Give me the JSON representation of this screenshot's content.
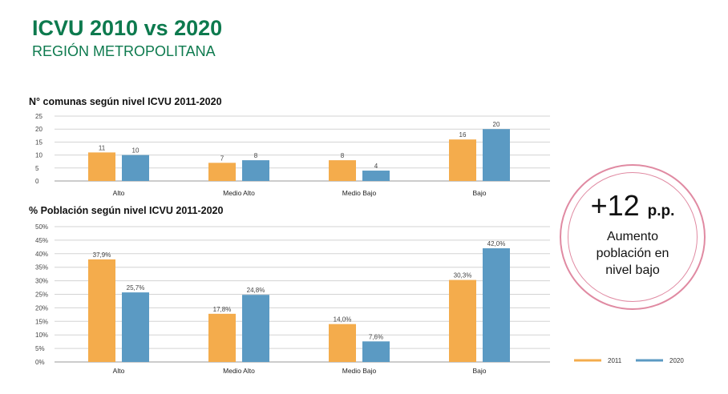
{
  "header": {
    "title": "ICVU 2010 vs 2020",
    "subtitle": "REGIÓN METROPOLITANA"
  },
  "colors": {
    "title": "#0d7a4e",
    "series_2011": "#f4ac4c",
    "series_2020": "#5b9ac3",
    "callout_ring": "#e08aa2"
  },
  "callout": {
    "value": "+12",
    "unit": "p.p.",
    "description": "Aumento población en nivel bajo"
  },
  "legend": {
    "placement": "bottom-right",
    "items": [
      "2011",
      "2020"
    ]
  },
  "chart_data": [
    {
      "type": "bar",
      "title": "N° comunas según nivel ICVU 2011-2020",
      "categories": [
        "Alto",
        "Medio Alto",
        "Medio Bajo",
        "Bajo"
      ],
      "series": [
        {
          "name": "2011",
          "values": [
            11,
            7,
            8,
            16
          ],
          "labels": [
            "11",
            "7",
            "8",
            "16"
          ]
        },
        {
          "name": "2020",
          "values": [
            10,
            8,
            4,
            20
          ],
          "labels": [
            "10",
            "8",
            "4",
            "20"
          ]
        }
      ],
      "ylim": [
        0,
        25
      ],
      "yticks": [
        0,
        5,
        10,
        15,
        20,
        25
      ],
      "ytick_labels": [
        "0",
        "5",
        "10",
        "15",
        "20",
        "25"
      ],
      "grid": true
    },
    {
      "type": "bar",
      "title": "% Población según nivel ICVU 2011-2020",
      "categories": [
        "Alto",
        "Medio Alto",
        "Medio Bajo",
        "Bajo"
      ],
      "series": [
        {
          "name": "2011",
          "values": [
            37.9,
            17.8,
            14.0,
            30.3
          ],
          "labels": [
            "37,9%",
            "17,8%",
            "14,0%",
            "30,3%"
          ]
        },
        {
          "name": "2020",
          "values": [
            25.7,
            24.8,
            7.6,
            42.0
          ],
          "labels": [
            "25,7%",
            "24,8%",
            "7,6%",
            "42,0%"
          ]
        }
      ],
      "ylim": [
        0,
        50
      ],
      "yticks": [
        0,
        5,
        10,
        15,
        20,
        25,
        30,
        35,
        40,
        45,
        50
      ],
      "ytick_labels": [
        "0%",
        "5%",
        "10%",
        "15%",
        "20%",
        "25%",
        "30%",
        "35%",
        "40%",
        "45%",
        "50%"
      ],
      "grid": true
    }
  ]
}
